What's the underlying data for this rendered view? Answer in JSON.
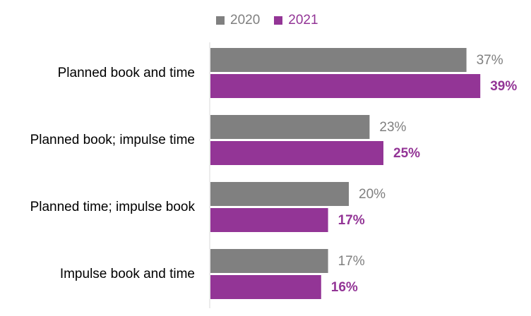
{
  "chart_data": {
    "type": "bar",
    "orientation": "horizontal",
    "categories": [
      "Planned book and time",
      "Planned book; impulse time",
      "Planned time; impulse book",
      "Impulse book and time"
    ],
    "series": [
      {
        "name": "2020",
        "color": "#808080",
        "values": [
          37,
          23,
          20,
          17
        ],
        "labels": [
          "37%",
          "23%",
          "20%",
          "17%"
        ]
      },
      {
        "name": "2021",
        "color": "#933596",
        "values": [
          39,
          25,
          17,
          16
        ],
        "labels": [
          "39%",
          "25%",
          "17%",
          "16%"
        ]
      }
    ],
    "value_unit": "%",
    "xlim": [
      0,
      40
    ],
    "legend_position": "top",
    "grid": false
  }
}
